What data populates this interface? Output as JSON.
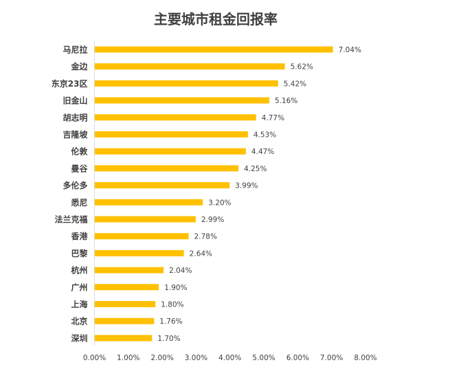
{
  "chart_data": {
    "type": "bar",
    "orientation": "horizontal",
    "title": "主要城市租金回报率",
    "categories": [
      "马尼拉",
      "金边",
      "东京23区",
      "旧金山",
      "胡志明",
      "吉隆坡",
      "伦敦",
      "曼谷",
      "多伦多",
      "悉尼",
      "法兰克福",
      "香港",
      "巴黎",
      "杭州",
      "广州",
      "上海",
      "北京",
      "深圳"
    ],
    "values": [
      7.04,
      5.62,
      5.42,
      5.16,
      4.77,
      4.53,
      4.47,
      4.25,
      3.99,
      3.2,
      2.99,
      2.78,
      2.64,
      2.04,
      1.9,
      1.8,
      1.76,
      1.7
    ],
    "value_labels": [
      "7.04%",
      "5.62%",
      "5.42%",
      "5.16%",
      "4.77%",
      "4.53%",
      "4.47%",
      "4.25%",
      "3.99%",
      "3.20%",
      "2.99%",
      "2.78%",
      "2.64%",
      "2.04%",
      "1.90%",
      "1.80%",
      "1.76%",
      "1.70%"
    ],
    "xlim": [
      0,
      8
    ],
    "x_ticks": [
      0,
      1,
      2,
      3,
      4,
      5,
      6,
      7,
      8
    ],
    "x_tick_labels": [
      "0.00%",
      "1.00%",
      "2.00%",
      "3.00%",
      "4.00%",
      "5.00%",
      "6.00%",
      "7.00%",
      "8.00%"
    ],
    "xlabel": "",
    "ylabel": "",
    "grid": false,
    "legend": "none",
    "bar_color": "#FFC000",
    "axis_color": "#D9D9D9",
    "text_color": "#404040",
    "title_color": "#404040"
  }
}
